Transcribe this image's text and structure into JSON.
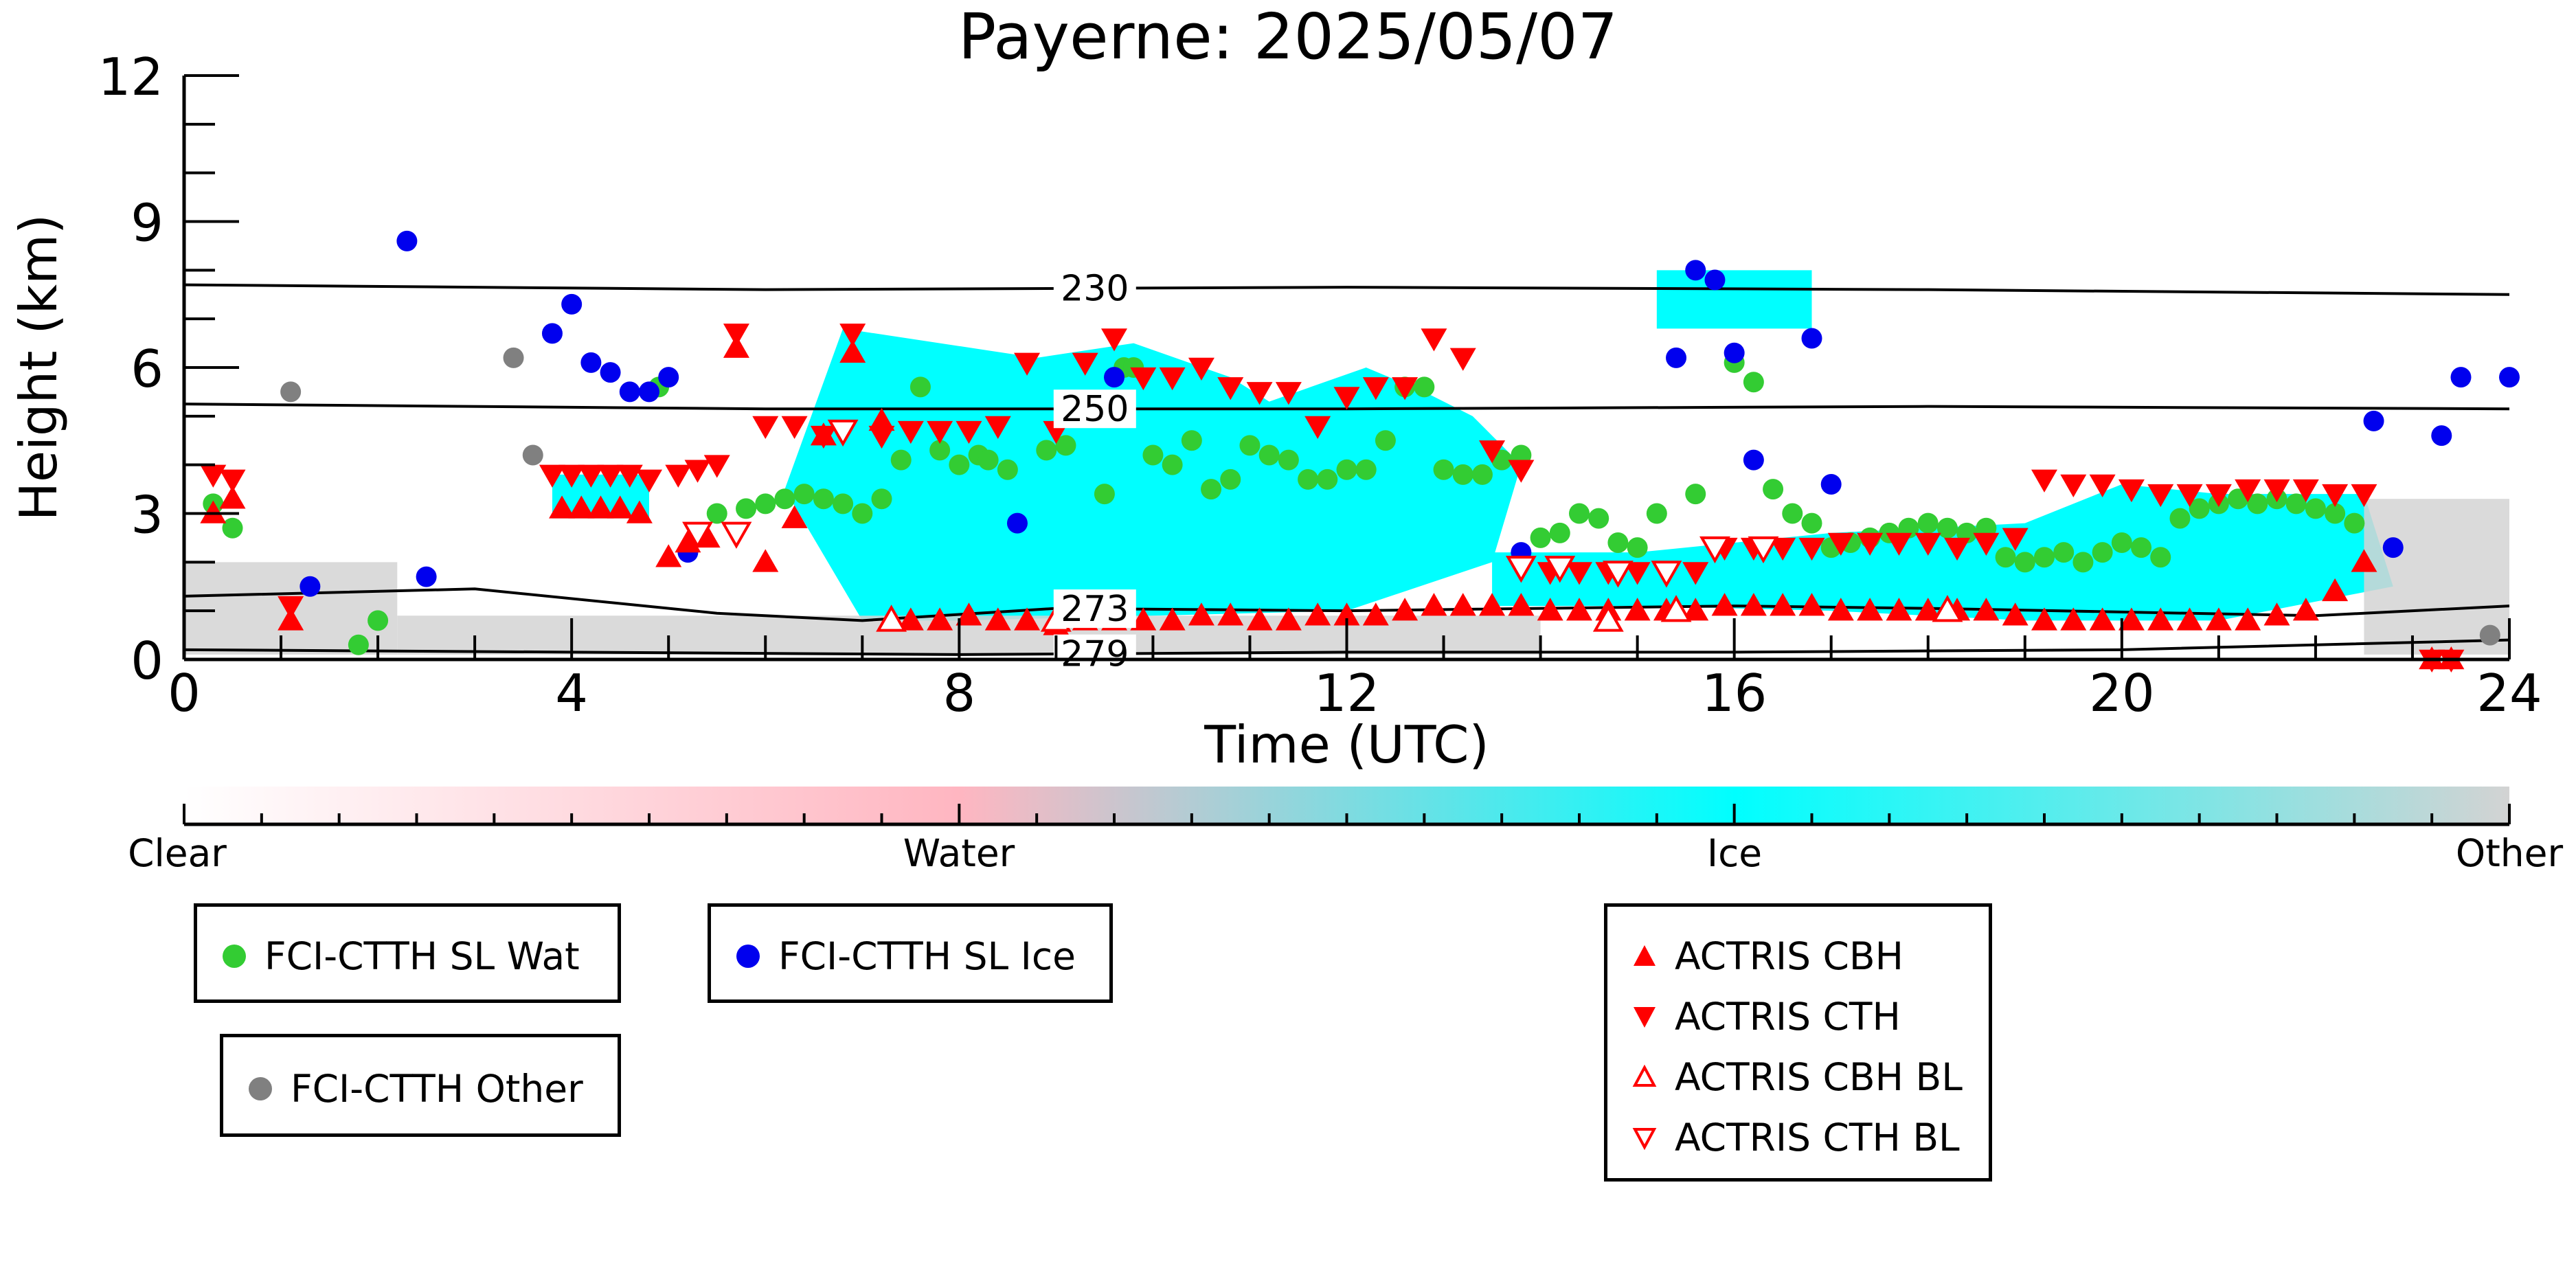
{
  "chart_data": {
    "type": "scatter",
    "title": "Payerne: 2025/05/07",
    "xlabel": "Time (UTC)",
    "ylabel": "Height (km)",
    "xlim": [
      0,
      24
    ],
    "ylim": [
      0,
      12
    ],
    "xticks": [
      "0",
      "4",
      "8",
      "12",
      "16",
      "20",
      "24"
    ],
    "yticks": [
      "0",
      "3",
      "6",
      "9",
      "12"
    ],
    "colorbar": {
      "labels": [
        "Clear",
        "Water",
        "Ice",
        "Other"
      ],
      "colors": [
        "#ffffff",
        "#ffb6c1",
        "#00ffff",
        "#d3d3d3"
      ]
    },
    "isotherms": [
      {
        "label": "230",
        "x": [
          0,
          6,
          12,
          18,
          24
        ],
        "y": [
          7.7,
          7.6,
          7.65,
          7.6,
          7.5
        ]
      },
      {
        "label": "250",
        "x": [
          0,
          6,
          12,
          18,
          24
        ],
        "y": [
          5.25,
          5.15,
          5.15,
          5.2,
          5.15
        ]
      },
      {
        "label": "273",
        "x": [
          0,
          3,
          5.5,
          7,
          9,
          12,
          16,
          18,
          22,
          24
        ],
        "y": [
          1.3,
          1.45,
          0.95,
          0.8,
          1.05,
          1.0,
          1.1,
          1.05,
          0.9,
          1.1
        ]
      },
      {
        "label": "279",
        "x": [
          0,
          4,
          8,
          12,
          16,
          20,
          24
        ],
        "y": [
          0.2,
          0.15,
          0.1,
          0.15,
          0.15,
          0.2,
          0.4
        ]
      }
    ],
    "cloud_regions": [
      {
        "phase": "Ice",
        "x": [
          6.2,
          6.8,
          8.8,
          9.8,
          10.8,
          11.2,
          12.2,
          12.8,
          13.3,
          13.8,
          13.5,
          12,
          10,
          8,
          7
        ],
        "y": [
          3.5,
          6.8,
          6.2,
          6.5,
          5.8,
          5.3,
          6.0,
          5.5,
          5.0,
          4.0,
          2.0,
          1.0,
          0.9,
          0.8,
          0.8
        ]
      },
      {
        "phase": "Ice",
        "x": [
          13.5,
          15,
          17,
          19,
          20,
          21,
          22.5,
          22.8,
          21,
          19,
          17,
          15,
          13.5
        ],
        "y": [
          2.2,
          2.2,
          2.6,
          2.8,
          3.6,
          3.4,
          3.4,
          1.5,
          0.8,
          0.8,
          1.0,
          1.1,
          1.1
        ]
      },
      {
        "phase": "Ice",
        "x": [
          3.8,
          4.8,
          4.8,
          3.8
        ],
        "y": [
          3.8,
          3.8,
          2.9,
          2.9
        ]
      },
      {
        "phase": "Ice",
        "x": [
          15.2,
          16.8,
          16.8,
          15.2
        ],
        "y": [
          8.0,
          8.0,
          6.8,
          6.8
        ]
      },
      {
        "phase": "Other",
        "x": [
          0,
          2.2,
          2.2,
          0
        ],
        "y": [
          2.0,
          2.0,
          0.1,
          0.1
        ]
      },
      {
        "phase": "Other",
        "x": [
          22.5,
          24,
          24,
          22.5
        ],
        "y": [
          3.3,
          3.3,
          0.1,
          0.1
        ]
      },
      {
        "phase": "Other",
        "x": [
          2.2,
          14,
          14,
          2.2
        ],
        "y": [
          0.9,
          0.9,
          0.1,
          0.1
        ]
      }
    ],
    "series": [
      {
        "name": "FCI-CTTH SL Wat",
        "marker": "circle",
        "color": "#33cc33",
        "x": [
          0.3,
          0.5,
          1.8,
          2.0,
          4.9,
          5.5,
          5.8,
          6.0,
          6.2,
          6.4,
          6.6,
          6.8,
          7.0,
          7.2,
          7.4,
          7.6,
          7.8,
          8.0,
          8.2,
          8.3,
          8.5,
          8.9,
          9.1,
          9.5,
          9.7,
          9.8,
          10.0,
          10.2,
          10.4,
          10.6,
          10.8,
          11.0,
          11.2,
          11.4,
          11.6,
          11.8,
          12.0,
          12.2,
          12.4,
          12.6,
          12.8,
          13.0,
          13.2,
          13.4,
          13.6,
          13.8,
          14.0,
          14.2,
          14.4,
          14.6,
          14.8,
          15.0,
          15.2,
          15.6,
          16.0,
          16.2,
          16.4,
          16.6,
          16.8,
          17.0,
          17.2,
          17.4,
          17.6,
          17.8,
          18.0,
          18.2,
          18.4,
          18.6,
          18.8,
          19.0,
          19.2,
          19.4,
          19.6,
          19.8,
          20.0,
          20.2,
          20.4,
          20.6,
          20.8,
          21.0,
          21.2,
          21.4,
          21.6,
          21.8,
          22.0,
          22.2,
          22.4
        ],
        "y": [
          3.2,
          2.7,
          0.3,
          0.8,
          5.6,
          3.0,
          3.1,
          3.2,
          3.3,
          3.4,
          3.3,
          3.2,
          3.0,
          3.3,
          4.1,
          5.6,
          4.3,
          4.0,
          4.2,
          4.1,
          3.9,
          4.3,
          4.4,
          3.4,
          6.0,
          6.0,
          4.2,
          4.0,
          4.5,
          3.5,
          3.7,
          4.4,
          4.2,
          4.1,
          3.7,
          3.7,
          3.9,
          3.9,
          4.5,
          5.6,
          5.6,
          3.9,
          3.8,
          3.8,
          4.1,
          4.2,
          2.5,
          2.6,
          3.0,
          2.9,
          2.4,
          2.3,
          3.0,
          3.4,
          6.1,
          5.7,
          3.5,
          3.0,
          2.8,
          2.3,
          2.4,
          2.5,
          2.6,
          2.7,
          2.8,
          2.7,
          2.6,
          2.7,
          2.1,
          2.0,
          2.1,
          2.2,
          2.0,
          2.2,
          2.4,
          2.3,
          2.1,
          2.9,
          3.1,
          3.2,
          3.3,
          3.2,
          3.3,
          3.2,
          3.1,
          3.0,
          2.8
        ]
      },
      {
        "name": "FCI-CTTH SL Ice",
        "marker": "circle",
        "color": "#0000ee",
        "x": [
          1.3,
          2.3,
          2.5,
          3.8,
          4.0,
          4.2,
          4.4,
          4.6,
          4.8,
          5.0,
          5.2,
          8.6,
          9.6,
          13.8,
          15.4,
          15.6,
          15.8,
          16.0,
          16.2,
          16.8,
          17.0,
          22.6,
          22.8,
          23.3,
          23.5,
          24.0
        ],
        "y": [
          1.5,
          8.6,
          1.7,
          6.7,
          7.3,
          6.1,
          5.9,
          5.5,
          5.5,
          5.8,
          2.2,
          2.8,
          5.8,
          2.2,
          6.2,
          8.0,
          7.8,
          6.3,
          4.1,
          6.6,
          3.6,
          4.9,
          2.3,
          4.6,
          5.8,
          5.8
        ]
      },
      {
        "name": "FCI-CTTH Other",
        "marker": "circle",
        "color": "#808080",
        "x": [
          1.1,
          3.4,
          3.6,
          23.8
        ],
        "y": [
          5.5,
          6.2,
          4.2,
          0.5
        ]
      },
      {
        "name": "ACTRIS CBH",
        "marker": "triangle-up",
        "color": "#ff0000",
        "x": [
          0.3,
          0.5,
          1.1,
          3.9,
          4.1,
          4.3,
          4.5,
          4.7,
          5.0,
          5.2,
          5.4,
          5.7,
          6.0,
          6.3,
          6.6,
          6.9,
          7.2,
          7.5,
          7.8,
          8.1,
          8.4,
          8.7,
          9.0,
          9.3,
          9.6,
          9.9,
          10.2,
          10.5,
          10.8,
          11.1,
          11.4,
          11.7,
          12.0,
          12.3,
          12.6,
          12.9,
          13.2,
          13.5,
          13.8,
          14.1,
          14.4,
          14.7,
          15.0,
          15.3,
          15.6,
          15.9,
          16.2,
          16.5,
          16.8,
          17.1,
          17.4,
          17.7,
          18.0,
          18.3,
          18.6,
          18.9,
          19.2,
          19.5,
          19.8,
          20.1,
          20.4,
          20.7,
          21.0,
          21.3,
          21.6,
          21.9,
          22.2,
          22.5,
          23.2,
          23.4
        ],
        "y": [
          3.0,
          3.3,
          0.8,
          3.1,
          3.1,
          3.1,
          3.1,
          3.0,
          2.1,
          2.4,
          2.5,
          6.4,
          2.0,
          2.9,
          4.6,
          6.3,
          4.9,
          0.8,
          0.8,
          0.9,
          0.8,
          0.8,
          0.7,
          0.8,
          0.8,
          0.8,
          0.8,
          0.9,
          0.9,
          0.8,
          0.8,
          0.9,
          0.9,
          0.9,
          1.0,
          1.1,
          1.1,
          1.1,
          1.1,
          1.0,
          1.0,
          1.0,
          1.0,
          1.0,
          1.0,
          1.1,
          1.1,
          1.1,
          1.1,
          1.0,
          1.0,
          1.0,
          1.0,
          1.0,
          1.0,
          0.9,
          0.8,
          0.8,
          0.8,
          0.8,
          0.8,
          0.8,
          0.8,
          0.8,
          0.9,
          1.0,
          1.4,
          2.0,
          0.0,
          0.0
        ]
      },
      {
        "name": "ACTRIS CTH",
        "marker": "triangle-down",
        "color": "#ff0000",
        "x": [
          0.3,
          0.5,
          1.1,
          3.8,
          4.0,
          4.2,
          4.4,
          4.6,
          4.8,
          5.1,
          5.3,
          5.5,
          5.7,
          6.0,
          6.3,
          6.6,
          6.9,
          7.2,
          7.5,
          7.8,
          8.1,
          8.4,
          8.7,
          9.0,
          9.3,
          9.6,
          9.9,
          10.2,
          10.5,
          10.8,
          11.1,
          11.4,
          11.7,
          12.0,
          12.3,
          12.6,
          12.9,
          13.2,
          13.5,
          13.8,
          14.1,
          14.4,
          14.7,
          15.0,
          15.3,
          15.6,
          15.9,
          16.2,
          16.5,
          16.8,
          17.1,
          17.4,
          17.7,
          18.0,
          18.3,
          18.6,
          18.9,
          19.2,
          19.5,
          19.8,
          20.1,
          20.4,
          20.7,
          21.0,
          21.3,
          21.6,
          21.9,
          22.2,
          22.5,
          23.2,
          23.4
        ],
        "y": [
          3.8,
          3.7,
          1.1,
          3.8,
          3.8,
          3.8,
          3.8,
          3.8,
          3.7,
          3.8,
          3.9,
          4.0,
          6.7,
          4.8,
          4.8,
          4.6,
          6.7,
          4.6,
          4.7,
          4.7,
          4.7,
          4.8,
          6.1,
          4.7,
          6.1,
          6.6,
          5.8,
          5.8,
          6.0,
          5.6,
          5.5,
          5.5,
          4.8,
          5.4,
          5.6,
          5.6,
          6.6,
          6.2,
          4.3,
          3.9,
          1.8,
          1.8,
          1.8,
          1.8,
          1.8,
          1.8,
          2.3,
          2.3,
          2.3,
          2.3,
          2.4,
          2.4,
          2.4,
          2.4,
          2.3,
          2.4,
          2.5,
          3.7,
          3.6,
          3.6,
          3.5,
          3.4,
          3.4,
          3.4,
          3.5,
          3.5,
          3.5,
          3.4,
          3.4,
          0.0,
          0.0
        ]
      },
      {
        "name": "ACTRIS CBH BL",
        "marker": "triangle-up-open",
        "color": "#ff0000",
        "x": [
          7.3,
          9.0,
          14.7,
          15.4,
          18.2
        ],
        "y": [
          0.8,
          0.8,
          0.8,
          1.0,
          1.0
        ]
      },
      {
        "name": "ACTRIS CTH BL",
        "marker": "triangle-down-open",
        "color": "#ff0000",
        "x": [
          5.3,
          5.7,
          6.8,
          13.8,
          14.2,
          14.8,
          15.3,
          15.8,
          16.3
        ],
        "y": [
          2.6,
          2.6,
          4.7,
          1.9,
          1.9,
          1.8,
          1.8,
          2.3,
          2.3
        ]
      }
    ]
  }
}
